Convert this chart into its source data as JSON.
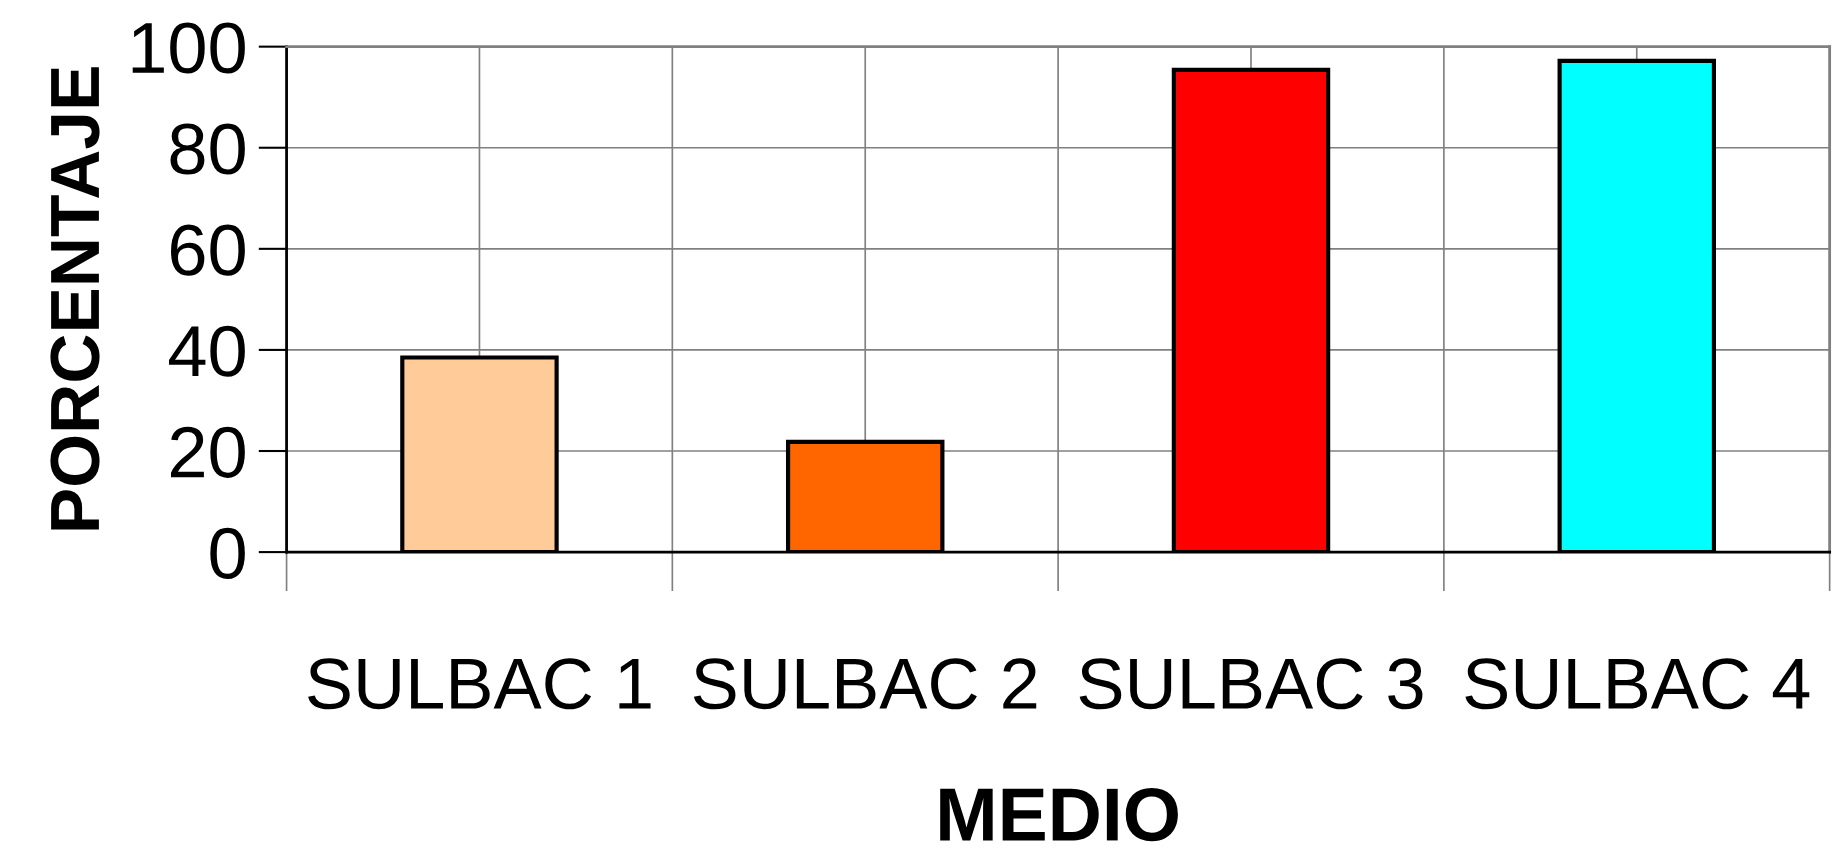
{
  "chart_data": {
    "type": "bar",
    "xlabel": "MEDIO",
    "ylabel": "PORCENTAJE",
    "categories": [
      "SULBAC 1",
      "SULBAC 2",
      "SULBAC 3",
      "SULBAC 4"
    ],
    "values": [
      38.5,
      21.8,
      95.4,
      97.2
    ],
    "colors": [
      "#ffcc99",
      "#ff6600",
      "#ff0000",
      "#00ffff"
    ],
    "ylim": [
      0,
      100
    ],
    "yticks": [
      0,
      20,
      40,
      60,
      80,
      100
    ],
    "grid": true
  }
}
